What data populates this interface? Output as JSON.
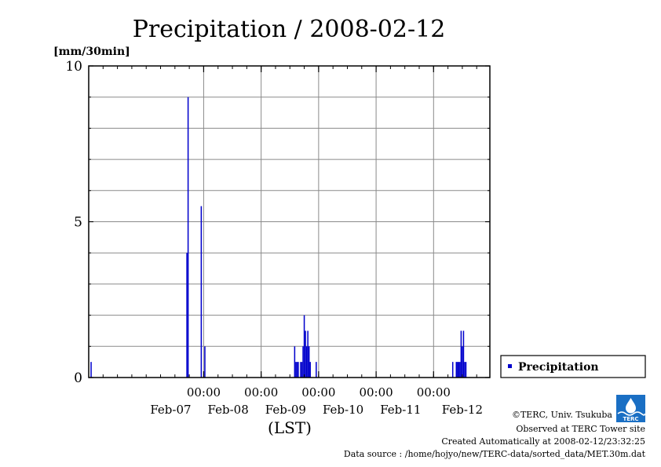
{
  "title": "Precipitation / 2008-02-12",
  "unit_label": "[mm/30min]",
  "x_axis_label": "(LST)",
  "legend": {
    "label": "Precipitation"
  },
  "footer": {
    "line1": "©TERC, Univ. Tsukuba",
    "line2": "Observed at TERC Tower site",
    "line3": "Created Automatically at 2008-02-12/23:32:25",
    "line4": "Data source : /home/hojyo/new/TERC-data/sorted_data/MET.30m.dat"
  },
  "logo": {
    "text": "TERC"
  },
  "colors": {
    "bar": "#0000cc",
    "grid": "#8a8a8a",
    "logo_blue": "#1a6fc4"
  },
  "chart_data": {
    "type": "bar",
    "x_type": "time",
    "x_range": [
      "2008-02-06 00:00",
      "2008-02-12 23:30"
    ],
    "ylim": [
      0,
      10
    ],
    "grid": true,
    "legend_position": "right",
    "y_ticks": [
      {
        "value": 0,
        "label": "0"
      },
      {
        "value": 5,
        "label": "5"
      },
      {
        "value": 10,
        "label": "10"
      }
    ],
    "x_ticks": [
      {
        "time": "2008-02-08 00:00",
        "time_label": "00:00",
        "date_label": "Feb-07"
      },
      {
        "time": "2008-02-09 00:00",
        "time_label": "00:00",
        "date_label": "Feb-08"
      },
      {
        "time": "2008-02-10 00:00",
        "time_label": "00:00",
        "date_label": "Feb-09"
      },
      {
        "time": "2008-02-11 00:00",
        "time_label": "00:00",
        "date_label": "Feb-10"
      },
      {
        "time": "2008-02-12 00:00",
        "time_label": "00:00",
        "date_label": "Feb-11"
      }
    ],
    "extra_date_labels": [
      {
        "time": "2008-02-12 12:00",
        "label": "Feb-12"
      }
    ],
    "series": [
      {
        "name": "Precipitation",
        "points": [
          [
            "2008-02-06 01:00",
            0.5
          ],
          [
            "2008-02-07 17:00",
            4.0
          ],
          [
            "2008-02-07 17:30",
            9.0
          ],
          [
            "2008-02-07 23:00",
            5.5
          ],
          [
            "2008-02-08 00:30",
            1.0
          ],
          [
            "2008-02-09 14:00",
            1.0
          ],
          [
            "2008-02-09 14:30",
            0.5
          ],
          [
            "2008-02-09 15:00",
            0.5
          ],
          [
            "2008-02-09 15:30",
            0.5
          ],
          [
            "2008-02-09 16:30",
            0.5
          ],
          [
            "2008-02-09 17:00",
            0.5
          ],
          [
            "2008-02-09 17:30",
            1.0
          ],
          [
            "2008-02-09 18:00",
            2.0
          ],
          [
            "2008-02-09 18:30",
            1.5
          ],
          [
            "2008-02-09 19:00",
            1.0
          ],
          [
            "2008-02-09 19:30",
            1.5
          ],
          [
            "2008-02-09 20:00",
            1.0
          ],
          [
            "2008-02-09 20:30",
            0.5
          ],
          [
            "2008-02-09 23:00",
            0.5
          ],
          [
            "2008-02-12 08:00",
            0.5
          ],
          [
            "2008-02-12 09:30",
            0.5
          ],
          [
            "2008-02-12 10:00",
            0.5
          ],
          [
            "2008-02-12 10:30",
            0.5
          ],
          [
            "2008-02-12 11:00",
            0.5
          ],
          [
            "2008-02-12 11:30",
            1.5
          ],
          [
            "2008-02-12 12:00",
            1.0
          ],
          [
            "2008-02-12 12:30",
            1.5
          ],
          [
            "2008-02-12 13:00",
            0.5
          ],
          [
            "2008-02-12 13:30",
            0.5
          ]
        ]
      }
    ]
  }
}
